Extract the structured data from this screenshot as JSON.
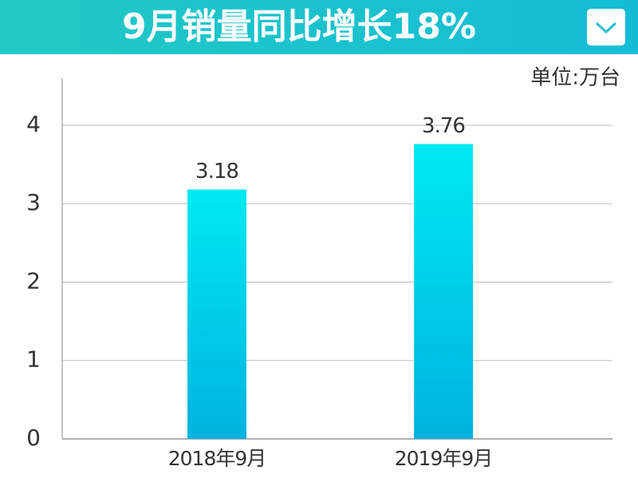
{
  "chart_data": {
    "type": "bar",
    "title": "9月销量同比增长18%",
    "unit_label": "单位:万台",
    "categories": [
      "2018年9月",
      "2019年9月"
    ],
    "values": [
      3.18,
      3.76
    ],
    "color": [
      "#00eaf2",
      "#00b2e0"
    ],
    "ylim": [
      0,
      4.6
    ],
    "yticks": [
      0,
      1,
      2,
      3,
      4
    ],
    "grid": true
  }
}
